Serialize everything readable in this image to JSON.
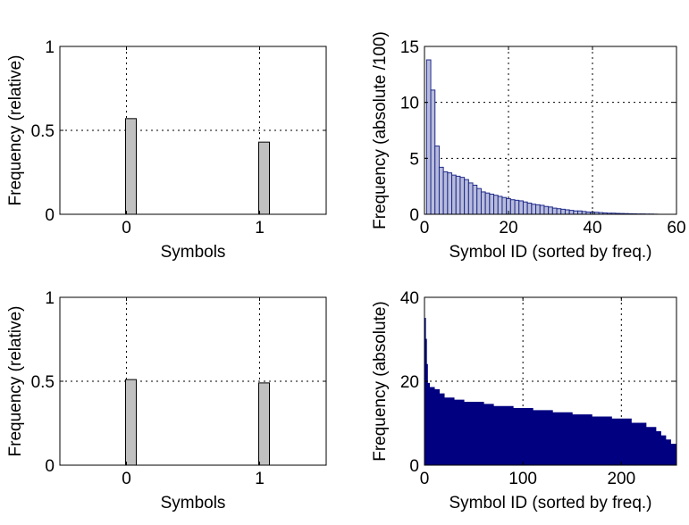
{
  "chart_data": [
    {
      "id": "top-left",
      "type": "bar",
      "xlabel": "Symbols",
      "ylabel": "Frequency (relative)",
      "x": [
        0,
        1
      ],
      "values": [
        0.57,
        0.43
      ],
      "xlim": [
        -0.5,
        1.5
      ],
      "ylim": [
        0,
        1
      ],
      "xticks": [
        0,
        1
      ],
      "yticks": [
        0,
        0.5,
        1
      ],
      "ytick_labels": [
        "0",
        "0.5",
        "1"
      ],
      "grid": true,
      "bar_color": "#c0c0c0"
    },
    {
      "id": "top-right",
      "type": "bar",
      "xlabel": "Symbol ID (sorted by freq.)",
      "ylabel": "Frequency (absolute /100)",
      "xlim": [
        0,
        60
      ],
      "ylim": [
        0,
        15
      ],
      "xticks": [
        0,
        20,
        40,
        60
      ],
      "yticks": [
        0,
        5,
        10,
        15
      ],
      "grid": true,
      "bar_color": "#b8bcdc",
      "edge_color": "#1f2a8a",
      "x": [
        1,
        2,
        3,
        4,
        5,
        6,
        7,
        8,
        9,
        10,
        11,
        12,
        13,
        14,
        15,
        16,
        17,
        18,
        19,
        20,
        21,
        22,
        23,
        24,
        25,
        26,
        27,
        28,
        29,
        30,
        31,
        32,
        33,
        34,
        35,
        36,
        37,
        38,
        39,
        40,
        41,
        42,
        43,
        44,
        45,
        46,
        47,
        48,
        49,
        50,
        51,
        52,
        53,
        54,
        55
      ],
      "values": [
        13.8,
        11.1,
        6.1,
        4.2,
        3.8,
        3.7,
        3.5,
        3.4,
        3.3,
        3.1,
        2.8,
        2.6,
        2.3,
        2.0,
        1.9,
        1.8,
        1.7,
        1.6,
        1.5,
        1.4,
        1.3,
        1.25,
        1.2,
        1.1,
        1.0,
        0.9,
        0.85,
        0.8,
        0.7,
        0.65,
        0.55,
        0.5,
        0.45,
        0.4,
        0.35,
        0.3,
        0.3,
        0.25,
        0.2,
        0.2,
        0.18,
        0.15,
        0.12,
        0.1,
        0.1,
        0.08,
        0.07,
        0.06,
        0.05,
        0.04,
        0.03,
        0.03,
        0.02,
        0.02,
        0.01
      ]
    },
    {
      "id": "bottom-left",
      "type": "bar",
      "xlabel": "Symbols",
      "ylabel": "Frequency (relative)",
      "x": [
        0,
        1
      ],
      "values": [
        0.51,
        0.49
      ],
      "xlim": [
        -0.5,
        1.5
      ],
      "ylim": [
        0,
        1
      ],
      "xticks": [
        0,
        1
      ],
      "yticks": [
        0,
        0.5,
        1
      ],
      "ytick_labels": [
        "0",
        "0.5",
        "1"
      ],
      "grid": true,
      "bar_color": "#c0c0c0"
    },
    {
      "id": "bottom-right",
      "type": "area",
      "xlabel": "Symbol ID (sorted by freq.)",
      "ylabel": "Frequency (absolute)",
      "xlim": [
        0,
        256
      ],
      "ylim": [
        0,
        40
      ],
      "xticks": [
        0,
        100,
        200
      ],
      "yticks": [
        0,
        20,
        40
      ],
      "grid": true,
      "fill_color": "#000080",
      "x": [
        0,
        1,
        2,
        3,
        5,
        10,
        15,
        20,
        30,
        40,
        60,
        70,
        90,
        110,
        130,
        150,
        170,
        190,
        210,
        225,
        235,
        240,
        245,
        250,
        256
      ],
      "values": [
        35,
        30,
        24,
        19.5,
        18.5,
        18,
        17,
        16,
        15.5,
        15,
        14.5,
        14,
        13.5,
        13,
        12.5,
        12,
        11.5,
        11,
        10,
        9,
        8,
        7,
        6,
        5,
        4
      ]
    }
  ]
}
